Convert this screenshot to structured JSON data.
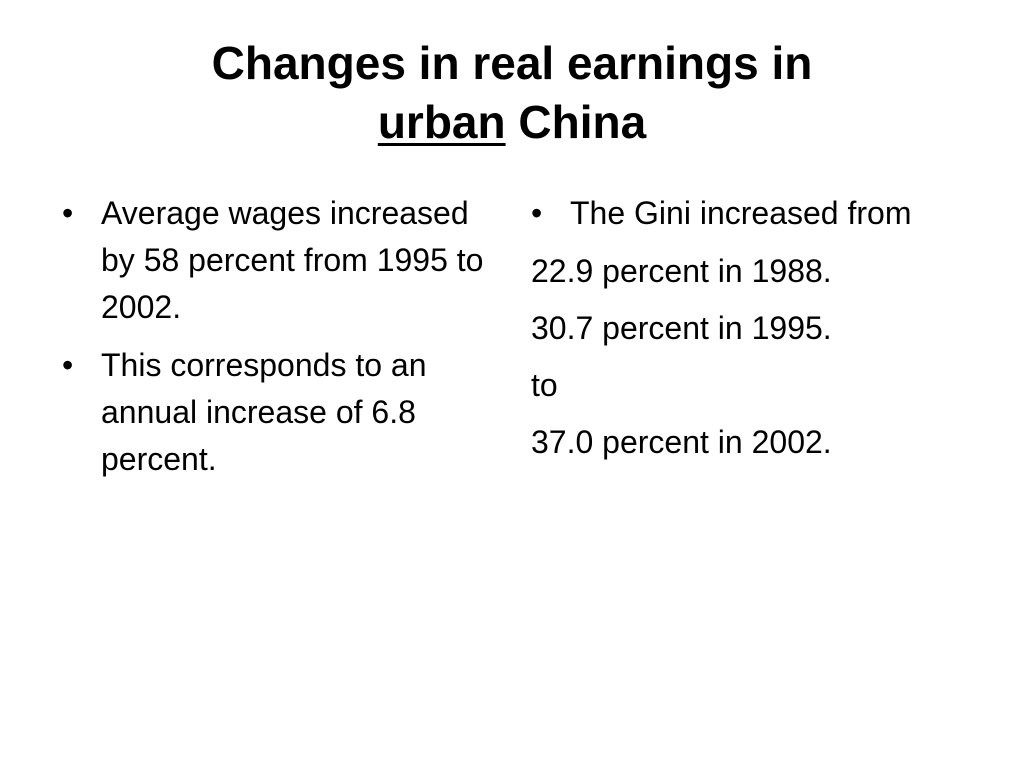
{
  "title": {
    "line1": "Changes in real earnings in",
    "underlined_word": "urban",
    "line2_rest": " China"
  },
  "left_column": {
    "bullets": [
      "Average wages increased by 58 percent from 1995 to 2002.",
      "This corresponds to an annual increase of 6.8 percent."
    ]
  },
  "right_column": {
    "bullets": [
      "The Gini increased from"
    ],
    "lines": [
      "22.9 percent in 1988.",
      "30.7 percent in 1995.",
      "to",
      "37.0 percent in 2002."
    ]
  },
  "bullet_glyph": "•"
}
